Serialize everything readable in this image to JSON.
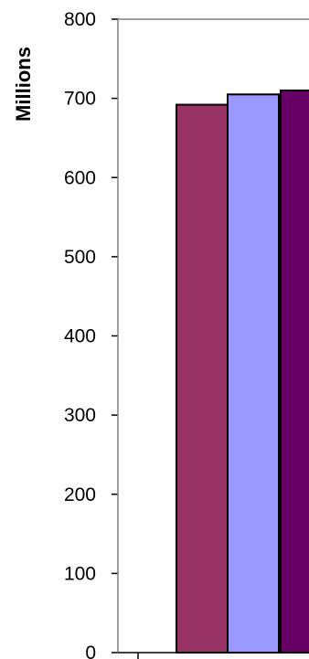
{
  "chart_data": {
    "type": "bar",
    "ylabel": "Millions",
    "ylim": [
      0,
      800
    ],
    "yticks": [
      0,
      100,
      200,
      300,
      400,
      500,
      600,
      700,
      800
    ],
    "ytick_labels": [
      "0",
      "100",
      "200",
      "300",
      "400",
      "500",
      "600",
      "700",
      "800"
    ],
    "grid": false,
    "series": [
      {
        "values": [
          692
        ],
        "color": "#993366"
      },
      {
        "values": [
          705
        ],
        "color": "#9999ff"
      },
      {
        "values": [
          710
        ],
        "color": "#660066"
      }
    ]
  }
}
